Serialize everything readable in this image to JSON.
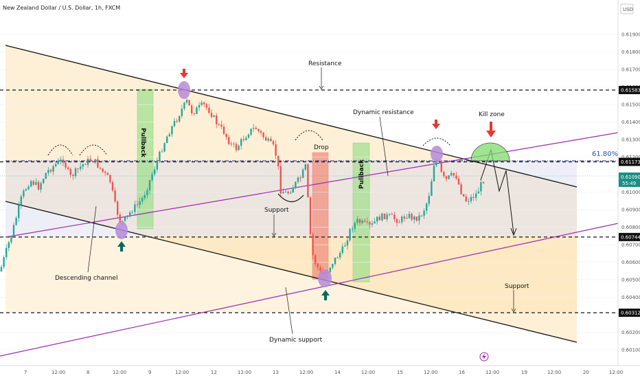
{
  "header": {
    "title": "New Zealand Dollar / U.S. Dollar, 1h, FXCM",
    "currency": "USD"
  },
  "chart_data": {
    "type": "candlestick",
    "symbol": "NZDUSD",
    "timeframe": "1h",
    "ylim": [
      0.6007,
      0.6205
    ],
    "y_ticks": [
      "0.61900",
      "0.61800",
      "0.61700",
      "0.61600",
      "0.61500",
      "0.61400",
      "0.61300",
      "0.61200",
      "0.61000",
      "0.60900",
      "0.60800",
      "0.60700",
      "0.60600",
      "0.60500",
      "0.60400",
      "0.60200",
      "0.60100"
    ],
    "x_ticks": [
      "7",
      "12:00",
      "8",
      "12:00",
      "9",
      "12:00",
      "12",
      "12:00",
      "13",
      "12:00",
      "14",
      "12:00",
      "15",
      "12:00",
      "16",
      "12:00",
      "19",
      "12:00",
      "20",
      "12:00"
    ],
    "levels": [
      {
        "label": "0.61583",
        "value": 0.61583
      },
      {
        "label": "0.61173",
        "value": 0.61173
      },
      {
        "label": "0.60744",
        "value": 0.60744
      },
      {
        "label": "0.60312",
        "value": 0.60312
      }
    ],
    "current_price": {
      "label": "0.61090",
      "value": 0.6109,
      "countdown": "55:49"
    },
    "fib_label": "61.80%",
    "annotations": {
      "resistance": "Resistance",
      "dynamic_resistance": "Dynamic resistance",
      "kill_zone": "Kill zone",
      "pullback_1": "Pullback",
      "pullback_2": "Pullback",
      "drop": "Drop",
      "support_mid": "Support",
      "support_right": "Support",
      "descending_channel": "Descending channel",
      "dynamic_support": "Dynamic support"
    },
    "colors": {
      "bull": "#26a69a",
      "bear": "#ef5350",
      "channel": "#000000",
      "dynamic": "#9c27b0",
      "level": "#000000"
    }
  }
}
